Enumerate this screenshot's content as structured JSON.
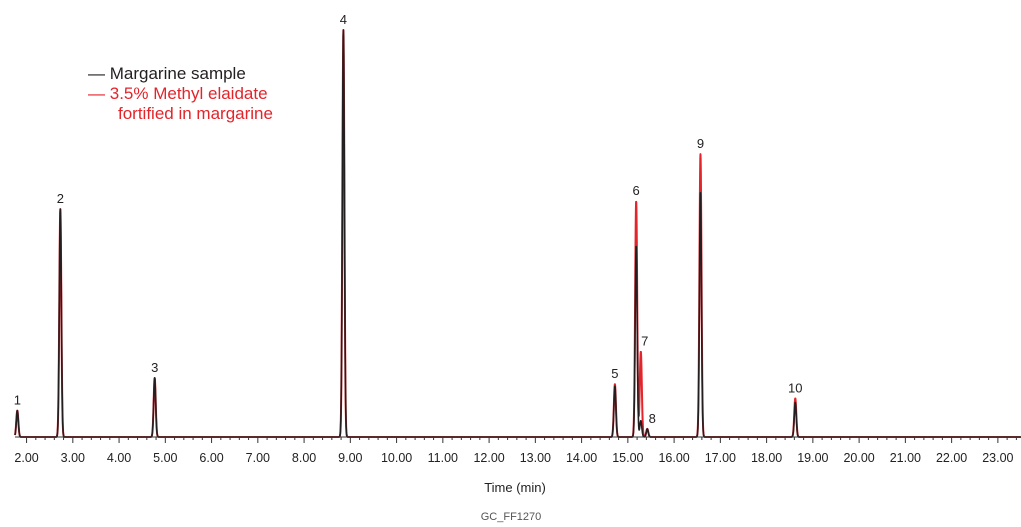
{
  "chart_data": {
    "type": "line",
    "title": "",
    "xlabel": "Time (min)",
    "ylabel": "",
    "xlim": [
      1.75,
      23.5
    ],
    "ylim": [
      0,
      100
    ],
    "x_ticks": [
      2,
      3,
      4,
      5,
      6,
      7,
      8,
      9,
      10,
      11,
      12,
      13,
      14,
      15,
      16,
      17,
      18,
      19,
      20,
      21,
      22,
      23
    ],
    "x_tick_labels": [
      "2.00",
      "3.00",
      "4.00",
      "5.00",
      "6.00",
      "7.00",
      "8.00",
      "9.00",
      "10.00",
      "11.00",
      "12.00",
      "13.00",
      "14.00",
      "15.00",
      "16.00",
      "17.00",
      "18.00",
      "19.00",
      "20.00",
      "21.00",
      "22.00",
      "23.00"
    ],
    "grid": false,
    "legend_position": "top-left",
    "series": [
      {
        "name": "Margarine sample",
        "color": "#231f20",
        "peaks": [
          {
            "label": "1",
            "rt": 1.8,
            "height": 6.5
          },
          {
            "label": "2",
            "rt": 2.73,
            "height": 56
          },
          {
            "label": "3",
            "rt": 4.77,
            "height": 14.5
          },
          {
            "label": "4",
            "rt": 8.85,
            "height": 100
          },
          {
            "label": "5",
            "rt": 14.72,
            "height": 12.5
          },
          {
            "label": "6",
            "rt": 15.18,
            "height": 47
          },
          {
            "label": "7",
            "rt": 15.28,
            "height": 4
          },
          {
            "label": "8",
            "rt": 15.42,
            "height": 2
          },
          {
            "label": "9",
            "rt": 16.57,
            "height": 60
          },
          {
            "label": "10",
            "rt": 18.62,
            "height": 8.5
          }
        ]
      },
      {
        "name": "3.5% Methyl elaidate fortified in margarine",
        "color": "#e3242b",
        "peaks": [
          {
            "label": "1",
            "rt": 1.8,
            "height": 6.5
          },
          {
            "label": "2",
            "rt": 2.73,
            "height": 56
          },
          {
            "label": "3",
            "rt": 4.77,
            "height": 14.5
          },
          {
            "label": "4",
            "rt": 8.85,
            "height": 100
          },
          {
            "label": "5",
            "rt": 14.72,
            "height": 13
          },
          {
            "label": "6",
            "rt": 15.18,
            "height": 58
          },
          {
            "label": "7",
            "rt": 15.28,
            "height": 21
          },
          {
            "label": "8",
            "rt": 15.42,
            "height": 2
          },
          {
            "label": "9",
            "rt": 16.57,
            "height": 69.5
          },
          {
            "label": "10",
            "rt": 18.62,
            "height": 9.5
          }
        ]
      }
    ]
  },
  "legend": {
    "margarine": "Margarine sample",
    "fortified_line1": "3.5% Methyl elaidate",
    "fortified_line2": "fortified in margarine",
    "dash": "—"
  },
  "figure_code": "GC_FF1270"
}
